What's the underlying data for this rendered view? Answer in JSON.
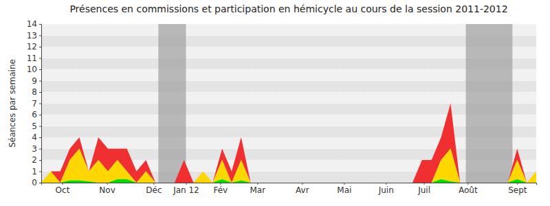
{
  "chart_data": {
    "type": "area",
    "title": "Présences en commissions et participation en hémicycle au cours de la session 2011-2012",
    "y_label": "Séances par semaine",
    "stacked": true,
    "grid": true,
    "x": [
      0,
      1,
      2,
      3,
      4,
      5,
      6,
      7,
      8,
      9,
      10,
      11,
      12,
      13,
      14,
      15,
      16,
      17,
      18,
      19,
      20,
      21,
      22,
      23,
      24,
      25,
      26,
      27,
      28,
      29,
      30,
      31,
      32,
      33,
      34,
      35,
      36,
      37,
      38,
      39,
      40,
      41,
      42,
      43,
      44,
      45,
      46,
      47,
      48,
      49,
      50,
      51,
      52
    ],
    "xlim": [
      0,
      52
    ],
    "xticks": [
      {
        "value": 2.2,
        "label": "Oct"
      },
      {
        "value": 6.9,
        "label": "Nov"
      },
      {
        "value": 11.8,
        "label": "Déc"
      },
      {
        "value": 15.2,
        "label": "Jan 12"
      },
      {
        "value": 18.8,
        "label": "Fév"
      },
      {
        "value": 22.7,
        "label": "Mar"
      },
      {
        "value": 27.4,
        "label": "Avr"
      },
      {
        "value": 31.8,
        "label": "Mai"
      },
      {
        "value": 36.2,
        "label": "Juin"
      },
      {
        "value": 40.2,
        "label": "Juil"
      },
      {
        "value": 44.8,
        "label": "Août"
      },
      {
        "value": 50.0,
        "label": "Sept"
      }
    ],
    "ylim": [
      0,
      14
    ],
    "yticks": [
      0,
      1,
      2,
      3,
      4,
      5,
      6,
      7,
      8,
      9,
      10,
      11,
      12,
      13,
      14
    ],
    "vacations": [
      [
        12.3,
        15.2
      ],
      [
        44.6,
        49.5
      ]
    ],
    "series": [
      {
        "color": "#00dd00",
        "values": [
          0,
          0,
          0,
          0.2,
          0.2,
          0.1,
          0,
          0,
          0.3,
          0.3,
          0,
          0,
          0,
          0,
          0,
          0,
          0,
          0,
          0,
          0.3,
          0,
          0.2,
          0,
          0,
          0,
          0,
          0,
          0,
          0,
          0,
          0,
          0,
          0,
          0,
          0,
          0,
          0,
          0,
          0,
          0,
          0,
          0,
          0.3,
          0.1,
          0,
          0,
          0,
          0,
          0,
          0,
          0.3,
          0,
          0
        ]
      },
      {
        "color": "#ffd700",
        "values": [
          0,
          1,
          0,
          1.8,
          2.8,
          0.9,
          2,
          1,
          1.7,
          0.7,
          0,
          1,
          0,
          0,
          0,
          0,
          0,
          1,
          0,
          1.7,
          0,
          1.8,
          0,
          0,
          0,
          0,
          0,
          0,
          0,
          0,
          0,
          0,
          0,
          0,
          0,
          0,
          0,
          0,
          0,
          0,
          0,
          0,
          1.7,
          2.9,
          0,
          0,
          0,
          0,
          0,
          0,
          1.7,
          0,
          1
        ]
      },
      {
        "color": "#f03030",
        "values": [
          0,
          0,
          1,
          1,
          1,
          0,
          2,
          2,
          1,
          2,
          1,
          1,
          0,
          0,
          0,
          2,
          0,
          0,
          0,
          1,
          1,
          2,
          0,
          0,
          0,
          0,
          0,
          0,
          0,
          0,
          0,
          0,
          0,
          0,
          0,
          0,
          0,
          0,
          0,
          0,
          2,
          2,
          2,
          4,
          0,
          0,
          0,
          0,
          0,
          0,
          1,
          0,
          0
        ]
      }
    ]
  }
}
